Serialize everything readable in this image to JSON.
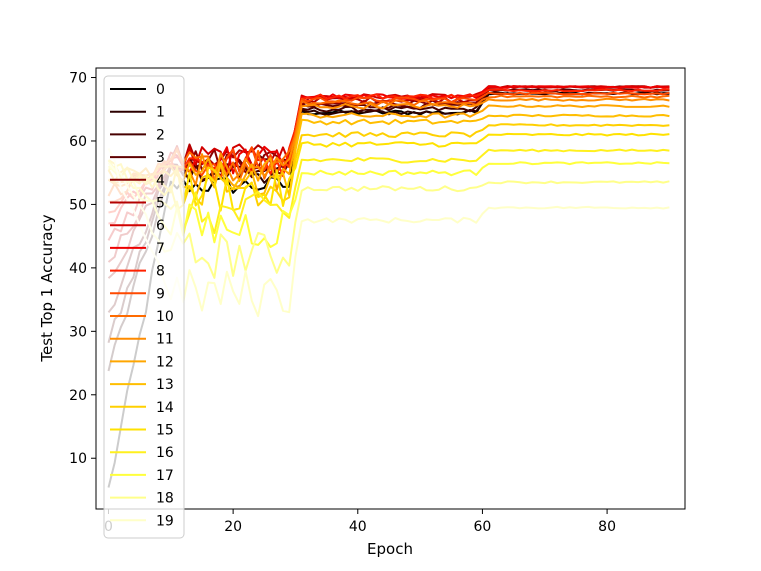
{
  "chart_data": {
    "type": "line",
    "title": "",
    "xlabel": "Epoch",
    "ylabel": "Test Top 1 Accuracy",
    "xlim": [
      -2,
      92.5
    ],
    "ylim": [
      2,
      71.5
    ],
    "xticks": [
      0,
      20,
      40,
      60,
      80
    ],
    "yticks": [
      10,
      20,
      30,
      40,
      50,
      60,
      70
    ],
    "grid": false,
    "legend_position": "upper-left",
    "colormap": "hot",
    "series_meta": [
      {
        "name": "0",
        "color": "#000000",
        "initial": 5
      },
      {
        "name": "1",
        "color": "#2c0000",
        "initial": 24
      },
      {
        "name": "2",
        "color": "#470000",
        "initial": 28
      },
      {
        "name": "3",
        "color": "#600000",
        "initial": 33
      },
      {
        "name": "4",
        "color": "#8a0000",
        "initial": 38
      },
      {
        "name": "5",
        "color": "#b30000",
        "initial": 41
      },
      {
        "name": "6",
        "color": "#d10000",
        "initial": 44
      },
      {
        "name": "7",
        "color": "#ee0000",
        "initial": 47
      },
      {
        "name": "8",
        "color": "#ff2100",
        "initial": 49
      },
      {
        "name": "9",
        "color": "#ff4900",
        "initial": 51
      },
      {
        "name": "10",
        "color": "#ff6b00",
        "initial": 52
      },
      {
        "name": "11",
        "color": "#ff8c00",
        "initial": 53
      },
      {
        "name": "12",
        "color": "#ffa600",
        "initial": 54
      },
      {
        "name": "13",
        "color": "#ffbe00",
        "initial": 55
      },
      {
        "name": "14",
        "color": "#ffd000",
        "initial": 56
      },
      {
        "name": "15",
        "color": "#ffe200",
        "initial": 56
      },
      {
        "name": "16",
        "color": "#fff01e",
        "initial": 57
      },
      {
        "name": "17",
        "color": "#ffff3c",
        "initial": 57
      },
      {
        "name": "18",
        "color": "#ffff8a",
        "initial": 57
      },
      {
        "name": "19",
        "color": "#ffffc8",
        "initial": 58
      }
    ],
    "phase1_levels": [
      53,
      55,
      55.5,
      56,
      57,
      57.5,
      57.2,
      57,
      56.8,
      56.5,
      56,
      55.5,
      55,
      54,
      53,
      52,
      48.5,
      46.5,
      42,
      36
    ],
    "phase2_levels": [
      64.5,
      64.5,
      65,
      65.5,
      66,
      66.5,
      67,
      67,
      67,
      66.5,
      66,
      65.5,
      64,
      63,
      61,
      59.5,
      57,
      55,
      52.5,
      47.5
    ],
    "phase3_levels": [
      67.5,
      67.5,
      68,
      68,
      68.5,
      68.5,
      68.5,
      68.5,
      68,
      67.5,
      67,
      66.5,
      65.5,
      64,
      62.5,
      61,
      58.5,
      56.5,
      53.5,
      49.5
    ]
  }
}
